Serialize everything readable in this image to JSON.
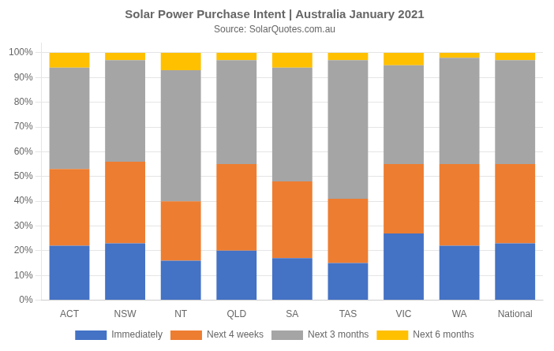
{
  "chart_data": {
    "type": "bar",
    "stacked": true,
    "title": "Solar Power Purchase Intent | Australia January 2021",
    "subtitle": "Source: SolarQuotes.com.au",
    "categories": [
      "ACT",
      "NSW",
      "NT",
      "QLD",
      "SA",
      "TAS",
      "VIC",
      "WA",
      "National"
    ],
    "series": [
      {
        "name": "Immediately",
        "color": "#4472C4",
        "values": [
          22,
          23,
          16,
          20,
          17,
          15,
          27,
          22,
          23
        ]
      },
      {
        "name": "Next 4 weeks",
        "color": "#ED7D31",
        "values": [
          31,
          33,
          24,
          35,
          31,
          26,
          28,
          33,
          32
        ]
      },
      {
        "name": "Next 3 months",
        "color": "#A5A5A5",
        "values": [
          41,
          41,
          53,
          42,
          46,
          56,
          40,
          43,
          42
        ]
      },
      {
        "name": "Next 6 months",
        "color": "#FFC000",
        "values": [
          6,
          3,
          7,
          3,
          6,
          3,
          5,
          2,
          3
        ]
      }
    ],
    "ylim": [
      0,
      104
    ],
    "yticks": [
      {
        "value": 0,
        "label": "0%"
      },
      {
        "value": 10,
        "label": "10%"
      },
      {
        "value": 20,
        "label": "20%"
      },
      {
        "value": 30,
        "label": "30%"
      },
      {
        "value": 40,
        "label": "40%"
      },
      {
        "value": 50,
        "label": "50%"
      },
      {
        "value": 60,
        "label": "60%"
      },
      {
        "value": 70,
        "label": "70%"
      },
      {
        "value": 80,
        "label": "80%"
      },
      {
        "value": 90,
        "label": "90%"
      },
      {
        "value": 100,
        "label": "100%"
      }
    ],
    "grid": "y",
    "legend": "bottom"
  }
}
